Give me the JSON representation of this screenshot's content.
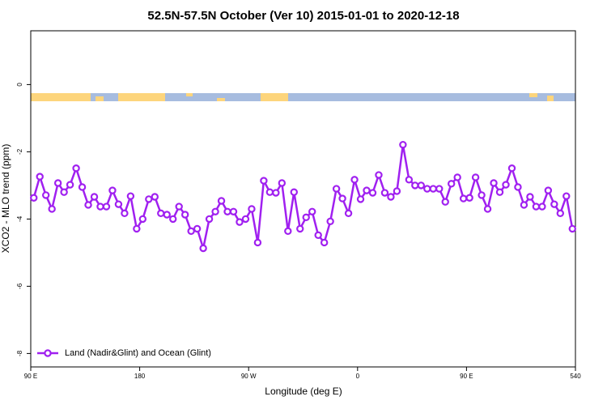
{
  "chart_data": {
    "type": "line",
    "title": "52.5N-57.5N October (Ver 10)   2015-01-01 to 2020-12-18",
    "x_label": "Longitude (deg E)",
    "y_label": "XCO2 - MLO trend (ppm)",
    "xlim": [
      90,
      540
    ],
    "ylim": [
      -8.4,
      1.6
    ],
    "xticks": [
      {
        "value": 90,
        "label": "90 E"
      },
      180,
      {
        "value": 270,
        "label": "90 W"
      },
      {
        "value": 360,
        "label": "0"
      },
      {
        "value": 450,
        "label": "90 E"
      },
      540
    ],
    "yticks": [
      0,
      -2,
      -4,
      -6,
      -8
    ],
    "legend": "bottom-left",
    "series": [
      {
        "name": "Land (Nadir&Glint) and Ocean (Glint)",
        "color": "#a020f0",
        "x": [
          92.5,
          97.5,
          102.5,
          107.5,
          112.5,
          117.5,
          122.5,
          127.5,
          132.5,
          137.5,
          142.5,
          147.5,
          152.5,
          157.5,
          162.5,
          167.5,
          172.5,
          177.5,
          182.5,
          187.5,
          192.5,
          197.5,
          202.5,
          207.5,
          212.5,
          217.5,
          222.5,
          227.5,
          232.5,
          237.5,
          242.5,
          247.5,
          252.5,
          257.5,
          262.5,
          267.5,
          272.5,
          277.5,
          282.5,
          287.5,
          292.5,
          297.5,
          302.5,
          307.5,
          312.5,
          317.5,
          322.5,
          327.5,
          332.5,
          337.5,
          342.5,
          347.5,
          352.5,
          357.5,
          362.5,
          367.5,
          372.5,
          377.5,
          382.5,
          387.5,
          392.5,
          397.5,
          402.5,
          407.5,
          412.5,
          417.5,
          422.5,
          427.5,
          432.5,
          437.5,
          442.5,
          447.5,
          452.5,
          457.5,
          462.5,
          467.5,
          472.5,
          477.5,
          482.5,
          487.5,
          492.5,
          497.5,
          502.5,
          507.5,
          512.5,
          517.5,
          522.5,
          527.5,
          532.5,
          537.5
        ],
        "values": [
          -3.37,
          -2.74,
          -3.29,
          -3.7,
          -2.93,
          -3.2,
          -2.98,
          -2.49,
          -3.05,
          -3.58,
          -3.34,
          -3.63,
          -3.63,
          -3.15,
          -3.56,
          -3.83,
          -3.32,
          -4.29,
          -4.0,
          -3.41,
          -3.34,
          -3.83,
          -3.87,
          -4.0,
          -3.63,
          -3.87,
          -4.36,
          -4.29,
          -4.87,
          -4.0,
          -3.78,
          -3.46,
          -3.78,
          -3.78,
          -4.09,
          -4.0,
          -3.7,
          -4.7,
          -2.86,
          -3.2,
          -3.22,
          -2.93,
          -4.36,
          -3.2,
          -4.29,
          -3.95,
          -3.78,
          -4.48,
          -4.7,
          -4.07,
          -3.1,
          -3.39,
          -3.83,
          -2.83,
          -3.41,
          -3.15,
          -3.22,
          -2.69,
          -3.22,
          -3.34,
          -3.17,
          -1.79,
          -2.83,
          -3.0,
          -3.0,
          -3.1,
          -3.1,
          -3.1,
          -3.49,
          -2.95,
          -2.76,
          -3.39,
          -3.37,
          -2.76,
          -3.29,
          -3.7,
          -2.93,
          -3.2,
          -2.98,
          -2.49,
          -3.05,
          -3.58,
          -3.34,
          -3.63,
          -3.63,
          -3.15,
          -3.56,
          -3.83,
          -3.32,
          -4.29
        ]
      }
    ]
  }
}
